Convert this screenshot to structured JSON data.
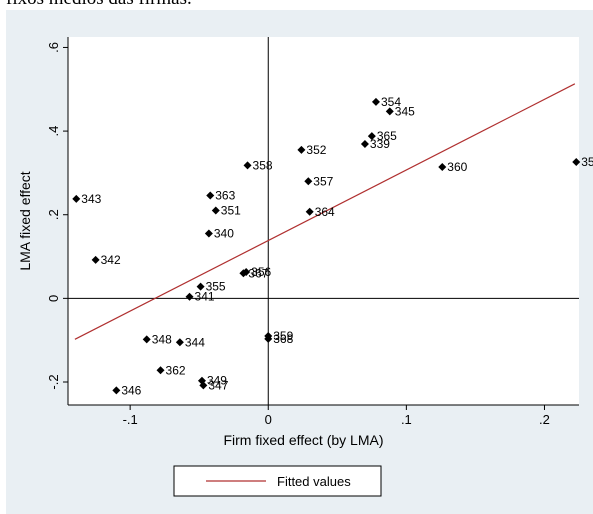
{
  "caption": "fixos médios das firmas.",
  "chart_data": {
    "type": "scatter",
    "xlabel": "Firm fixed effect (by LMA)",
    "ylabel": "LMA fixed effect",
    "xlim": [
      -0.145,
      0.225
    ],
    "ylim": [
      -0.255,
      0.625
    ],
    "x_ticks": [
      {
        "value": -0.1,
        "label": "-.1"
      },
      {
        "value": 0,
        "label": "0"
      },
      {
        "value": 0.1,
        "label": ".1"
      },
      {
        "value": 0.2,
        "label": ".2"
      }
    ],
    "y_ticks": [
      {
        "value": -0.2,
        "label": "-.2"
      },
      {
        "value": 0,
        "label": "0"
      },
      {
        "value": 0.2,
        "label": ".2"
      },
      {
        "value": 0.4,
        "label": ".4"
      },
      {
        "value": 0.6,
        "label": ".6"
      }
    ],
    "reference_lines": {
      "x": 0,
      "y": 0
    },
    "points": [
      {
        "x": -0.139,
        "y": 0.238,
        "label": "343"
      },
      {
        "x": -0.125,
        "y": 0.092,
        "label": "342"
      },
      {
        "x": -0.11,
        "y": -0.22,
        "label": "346"
      },
      {
        "x": -0.088,
        "y": -0.098,
        "label": "348"
      },
      {
        "x": -0.078,
        "y": -0.172,
        "label": "362"
      },
      {
        "x": -0.064,
        "y": -0.105,
        "label": "344"
      },
      {
        "x": -0.057,
        "y": 0.004,
        "label": "341"
      },
      {
        "x": -0.049,
        "y": 0.028,
        "label": "355"
      },
      {
        "x": -0.048,
        "y": -0.197,
        "label": "349"
      },
      {
        "x": -0.047,
        "y": -0.208,
        "label": "347"
      },
      {
        "x": -0.043,
        "y": 0.155,
        "label": "340"
      },
      {
        "x": -0.042,
        "y": 0.246,
        "label": "363"
      },
      {
        "x": -0.038,
        "y": 0.21,
        "label": "351"
      },
      {
        "x": -0.018,
        "y": 0.06,
        "label": "367"
      },
      {
        "x": -0.016,
        "y": 0.063,
        "label": "356"
      },
      {
        "x": -0.015,
        "y": 0.318,
        "label": "358"
      },
      {
        "x": 0,
        "y": -0.09,
        "label": "359"
      },
      {
        "x": 0,
        "y": -0.097,
        "label": "368"
      },
      {
        "x": 0.024,
        "y": 0.355,
        "label": "352"
      },
      {
        "x": 0.029,
        "y": 0.28,
        "label": "357"
      },
      {
        "x": 0.03,
        "y": 0.207,
        "label": "364"
      },
      {
        "x": 0.07,
        "y": 0.369,
        "label": "339"
      },
      {
        "x": 0.075,
        "y": 0.388,
        "label": "365"
      },
      {
        "x": 0.078,
        "y": 0.47,
        "label": "354"
      },
      {
        "x": 0.088,
        "y": 0.447,
        "label": "345"
      },
      {
        "x": 0.126,
        "y": 0.314,
        "label": "360"
      },
      {
        "x": 0.223,
        "y": 0.326,
        "label": "35"
      }
    ],
    "fitted_line": {
      "name": "Fitted values",
      "color": "#b03030",
      "x": [
        -0.14,
        0.222
      ],
      "y": [
        -0.098,
        0.513
      ]
    },
    "marker_color": "#000000",
    "legend_position": "bottom"
  }
}
